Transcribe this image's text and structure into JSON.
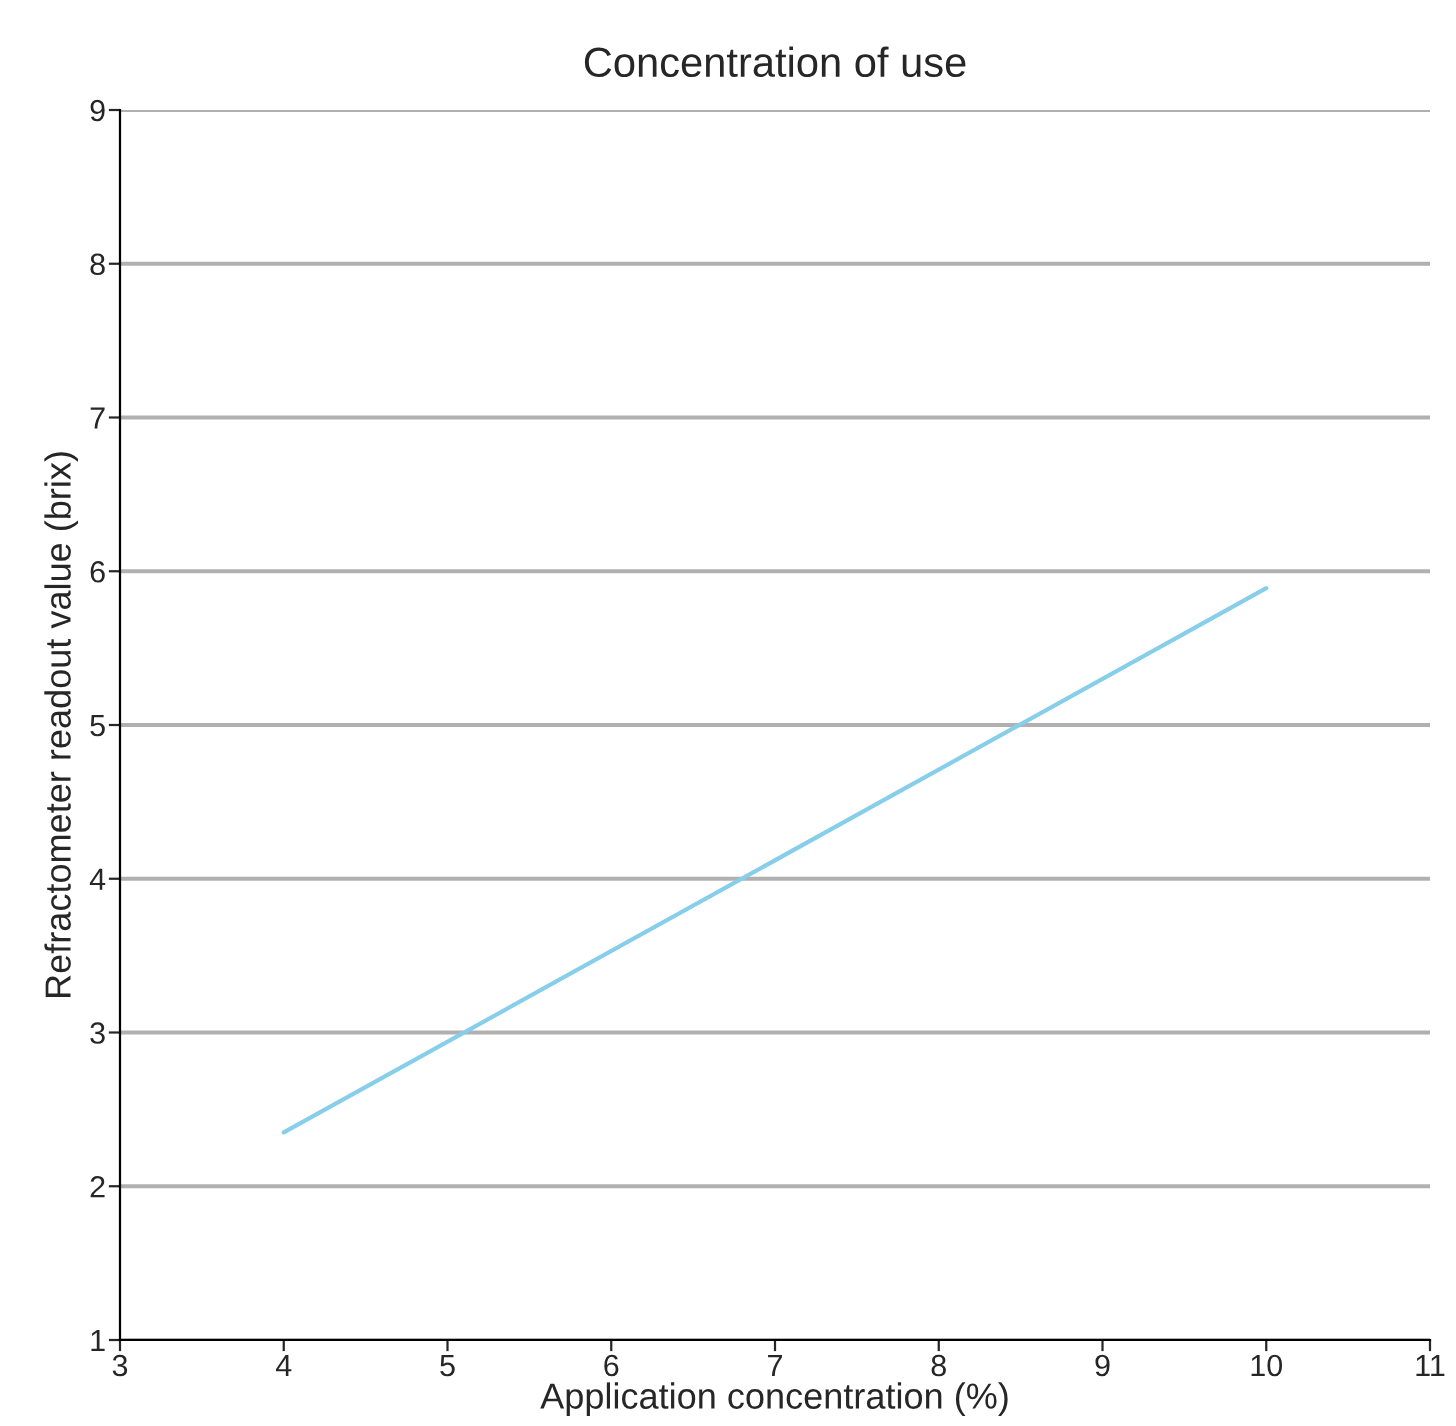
{
  "chart_data": {
    "type": "line",
    "title": "Concentration of use",
    "xlabel": "Application concentration (%)",
    "ylabel": "Refractometer readout value (brix)",
    "x": [
      4,
      10
    ],
    "series": [
      {
        "color": "#87ceeb",
        "values": [
          2.35,
          5.89
        ]
      }
    ],
    "xlim": [
      3,
      11
    ],
    "xticks": [
      3,
      4,
      5,
      6,
      7,
      8,
      9,
      10,
      11
    ],
    "ylim": [
      1,
      9
    ],
    "yticks": [
      1,
      2,
      3,
      4,
      5,
      6,
      7,
      8,
      9
    ],
    "grid": "y",
    "legend": false
  }
}
